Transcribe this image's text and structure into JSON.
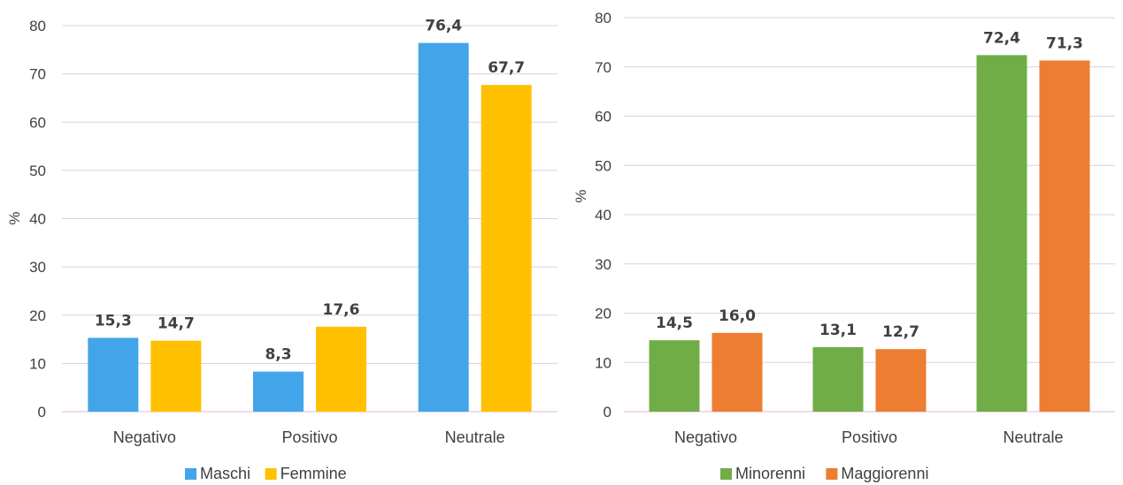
{
  "chart_data": [
    {
      "type": "bar",
      "categories": [
        "Negativo",
        "Positivo",
        "Neutrale"
      ],
      "series": [
        {
          "name": "Maschi",
          "values": [
            15.3,
            8.3,
            76.4
          ],
          "color": "#42A5EA",
          "labels": [
            "15,3",
            "8,3",
            "76,4"
          ]
        },
        {
          "name": "Femmine",
          "values": [
            14.7,
            17.6,
            67.7
          ],
          "color": "#FFC000",
          "labels": [
            "14,7",
            "17,6",
            "67,7"
          ]
        }
      ],
      "ylabel": "%",
      "ylim": [
        0,
        80
      ],
      "yticks": [
        0,
        10,
        20,
        30,
        40,
        50,
        60,
        70,
        80
      ],
      "grid": true,
      "legend": "bottom"
    },
    {
      "type": "bar",
      "categories": [
        "Negativo",
        "Positivo",
        "Neutrale"
      ],
      "series": [
        {
          "name": "Minorenni",
          "values": [
            14.5,
            13.1,
            72.4
          ],
          "color": "#70AD47",
          "labels": [
            "14,5",
            "13,1",
            "72,4"
          ]
        },
        {
          "name": "Maggiorenni",
          "values": [
            16.0,
            12.7,
            71.3
          ],
          "color": "#ED7D31",
          "labels": [
            "16,0",
            "12,7",
            "71,3"
          ]
        }
      ],
      "ylabel": "%",
      "ylim": [
        0,
        80
      ],
      "yticks": [
        0,
        10,
        20,
        30,
        40,
        50,
        60,
        70,
        80
      ],
      "grid": true,
      "legend": "bottom"
    }
  ]
}
